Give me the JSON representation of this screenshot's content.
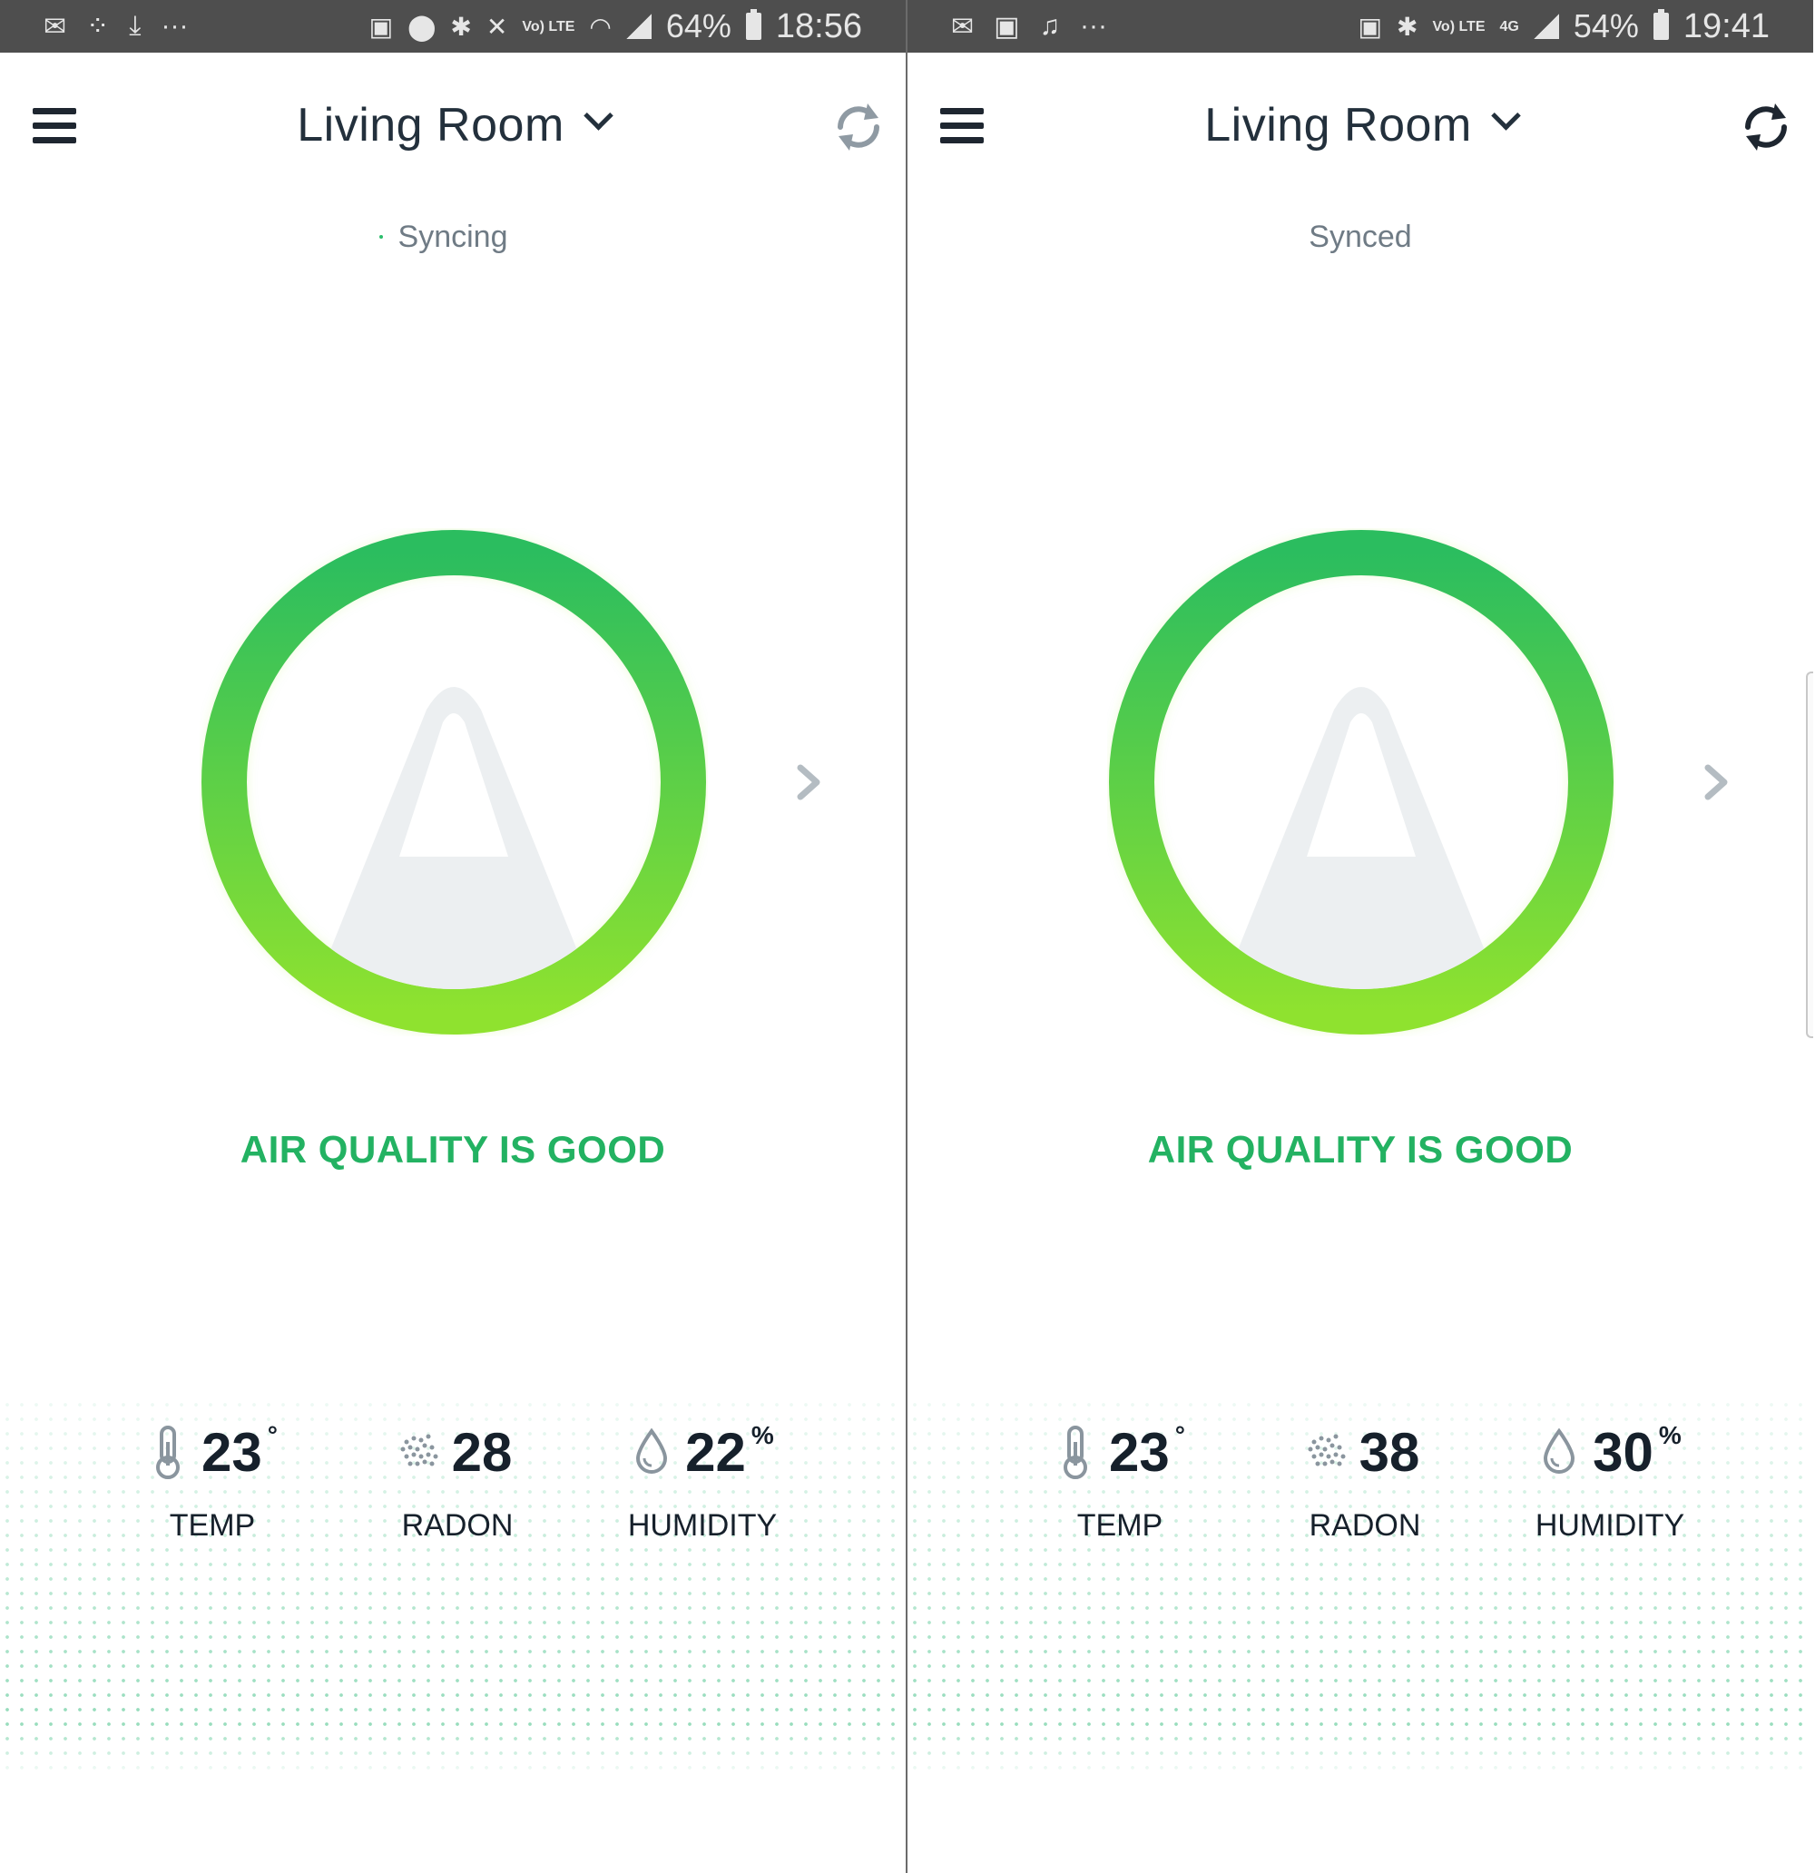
{
  "screens": [
    {
      "status_bar": {
        "left_icons": [
          "mail-icon",
          "network-icon",
          "download-icon",
          "more-dots-icon"
        ],
        "right_icons": [
          "nfc-icon",
          "location-icon",
          "bluetooth-icon",
          "mute-icon",
          "volte-icon",
          "wifi-icon",
          "signal-icon"
        ],
        "volte_label": "Vo) LTE",
        "battery": "64%",
        "time": "18:56"
      },
      "header": {
        "title": "Living Room"
      },
      "sync_status": "Syncing",
      "air_quality": {
        "label": "AIR QUALITY IS GOOD",
        "ring_color_top": "#2bbd5f",
        "ring_color_bottom": "#8fe22f"
      },
      "metrics": [
        {
          "value": "23",
          "unit": "°",
          "label": "TEMP",
          "icon": "thermometer-icon"
        },
        {
          "value": "28",
          "unit": "",
          "label": "RADON",
          "icon": "radon-dots-icon"
        },
        {
          "value": "22",
          "unit": "%",
          "label": "HUMIDITY",
          "icon": "droplet-icon"
        }
      ]
    },
    {
      "status_bar": {
        "left_icons": [
          "mail-icon",
          "facebook-icon",
          "bell-icon",
          "more-dots-icon"
        ],
        "right_icons": [
          "nfc-icon",
          "bluetooth-icon",
          "volte-icon",
          "4g-icon",
          "signal-icon"
        ],
        "volte_label": "Vo) LTE",
        "network_label": "4G",
        "battery": "54%",
        "time": "19:41"
      },
      "header": {
        "title": "Living Room"
      },
      "sync_status": "Synced",
      "air_quality": {
        "label": "AIR QUALITY IS GOOD",
        "ring_color_top": "#2bbd5f",
        "ring_color_bottom": "#8fe22f"
      },
      "metrics": [
        {
          "value": "23",
          "unit": "°",
          "label": "TEMP",
          "icon": "thermometer-icon"
        },
        {
          "value": "38",
          "unit": "",
          "label": "RADON",
          "icon": "radon-dots-icon"
        },
        {
          "value": "30",
          "unit": "%",
          "label": "HUMIDITY",
          "icon": "droplet-icon"
        }
      ]
    }
  ]
}
